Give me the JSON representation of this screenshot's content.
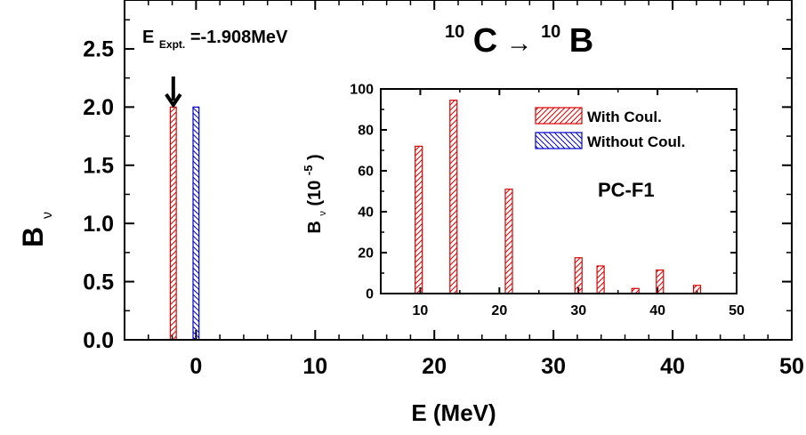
{
  "chart_data": [
    {
      "type": "bar",
      "panel": "main",
      "title_parts": {
        "parent_mass": "10",
        "parent": "C",
        "arrow": "→",
        "daughter_mass": "10",
        "daughter": "B"
      },
      "annotation": {
        "main": "E",
        "sub": "Expt.",
        "rest": "=-1.908MeV"
      },
      "xlabel": "E (MeV)",
      "ylabel": {
        "main": "B",
        "sub": "ν"
      },
      "xlim": [
        -6,
        50
      ],
      "ylim": [
        0,
        2.92
      ],
      "x_ticks": [
        "0",
        "10",
        "20",
        "30",
        "40",
        "50"
      ],
      "y_ticks": [
        "0.0",
        "0.5",
        "1.0",
        "1.5",
        "2.0",
        "2.5"
      ],
      "bar_width": 0.5,
      "series": [
        {
          "color": "#dd0000",
          "pattern": "hatch-forward",
          "points": [
            {
              "x": -1.908,
              "y": 2.0
            }
          ]
        },
        {
          "color": "#0000cc",
          "pattern": "hatch-back",
          "points": [
            {
              "x": 0.0,
              "y": 2.0
            }
          ]
        }
      ],
      "marker": {
        "type": "down-arrow",
        "x": -1.908
      }
    },
    {
      "type": "bar",
      "panel": "inset",
      "label": "PC-F1",
      "xlabel": "",
      "ylabel": {
        "main": "B",
        "sub": "ν",
        "rest": "(10",
        "exp": "-5",
        "close": ")"
      },
      "xlim": [
        5,
        50
      ],
      "ylim": [
        0,
        100
      ],
      "x_ticks": [
        "10",
        "20",
        "30",
        "40",
        "50"
      ],
      "y_ticks": [
        "0",
        "20",
        "40",
        "60",
        "80",
        "100"
      ],
      "bar_width": 0.9,
      "legend_position": "top-right",
      "series": [
        {
          "name": "With Coul.",
          "color": "#dd0000",
          "pattern": "hatch-forward",
          "points": [
            {
              "x": 9.8,
              "y": 72
            },
            {
              "x": 14.2,
              "y": 94.5
            },
            {
              "x": 21.2,
              "y": 51
            },
            {
              "x": 30.0,
              "y": 17.5
            },
            {
              "x": 32.8,
              "y": 13.5
            },
            {
              "x": 37.2,
              "y": 2.5
            },
            {
              "x": 40.3,
              "y": 11.5
            },
            {
              "x": 45.0,
              "y": 4.0
            }
          ]
        },
        {
          "name": "Without Coul.",
          "color": "#0000cc",
          "pattern": "hatch-back",
          "points": []
        }
      ]
    }
  ]
}
